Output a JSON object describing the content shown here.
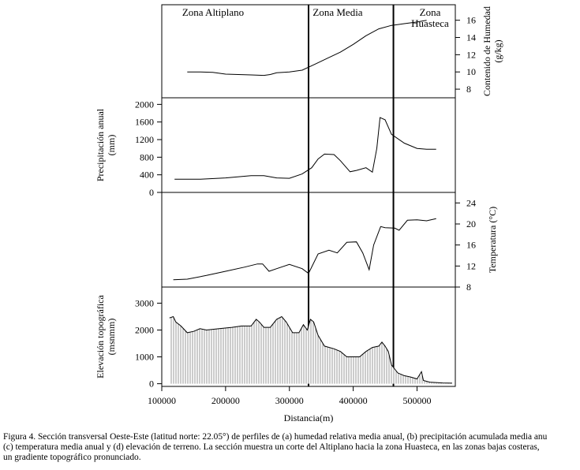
{
  "chart_data": {
    "type": "line",
    "title": "",
    "xlabel": "Distancia(m)",
    "xlim": [
      100000,
      560000
    ],
    "x_ticks": [
      100000,
      200000,
      300000,
      400000,
      500000
    ],
    "x_tick_labels": [
      "100000",
      "200000",
      "300000",
      "400000",
      "500000"
    ],
    "zones": [
      {
        "name": "Zona Altiplano",
        "x_start": 100000,
        "x_end": 330000
      },
      {
        "name": "Zona Media",
        "x_start": 330000,
        "x_end": 463000
      },
      {
        "name": "Zona Huasteca",
        "x_start": 463000,
        "x_end": 560000
      }
    ],
    "boundaries": [
      330000,
      463000
    ],
    "panels": [
      {
        "id": "humidity",
        "type": "line",
        "ylabel": "Contenido de Humedad (g/kg)",
        "ylabel_lines": [
          "Contenido de Humedad",
          "(g/kg)"
        ],
        "axis_side": "right",
        "ylim": [
          7,
          17.8
        ],
        "y_ticks": [
          8,
          10,
          12,
          14,
          16
        ],
        "series": [
          {
            "name": "Humedad",
            "x": [
              140000,
              160000,
              180000,
              200000,
              220000,
              240000,
              260000,
              270000,
              280000,
              300000,
              320000,
              340000,
              360000,
              380000,
              400000,
              420000,
              440000,
              460000,
              480000,
              500000,
              515000
            ],
            "y": [
              10.0,
              10.0,
              9.95,
              9.75,
              9.7,
              9.65,
              9.6,
              9.7,
              9.9,
              10.0,
              10.2,
              10.9,
              11.6,
              12.3,
              13.2,
              14.2,
              15.0,
              15.4,
              15.6,
              15.8,
              16.0
            ]
          }
        ]
      },
      {
        "id": "precipitation",
        "type": "line",
        "ylabel": "Precipitación anual (mm)",
        "ylabel_lines": [
          "Precipitación anual",
          "(mm)"
        ],
        "axis_side": "left",
        "ylim": [
          0,
          2150
        ],
        "y_ticks": [
          0,
          400,
          800,
          1200,
          1600,
          2000
        ],
        "series": [
          {
            "name": "Precipitación",
            "x": [
              120000,
              160000,
              200000,
              240000,
              260000,
              280000,
              300000,
              320000,
              335000,
              345000,
              355000,
              370000,
              380000,
              395000,
              405000,
              420000,
              430000,
              437000,
              442000,
              450000,
              460000,
              480000,
              500000,
              515000,
              530000
            ],
            "y": [
              300,
              300,
              330,
              380,
              380,
              330,
              320,
              420,
              560,
              760,
              870,
              860,
              720,
              470,
              500,
              560,
              460,
              1000,
              1700,
              1650,
              1320,
              1120,
              1000,
              980,
              980
            ]
          }
        ]
      },
      {
        "id": "temperature",
        "type": "line",
        "ylabel": "Temperatura (°C)",
        "ylabel_lines": [
          "Temperatura  (°C)"
        ],
        "axis_side": "right",
        "ylim": [
          8,
          26
        ],
        "y_ticks": [
          8,
          12,
          16,
          20,
          24
        ],
        "series": [
          {
            "name": "Temperatura",
            "x": [
              118000,
              140000,
              170000,
              200000,
              230000,
              250000,
              258000,
              268000,
              280000,
              300000,
              320000,
              330000,
              345000,
              362000,
              375000,
              390000,
              405000,
              415000,
              425000,
              432000,
              443000,
              450000,
              465000,
              472000,
              485000,
              500000,
              515000,
              530000
            ],
            "y": [
              9.4,
              9.5,
              10.2,
              11.0,
              11.8,
              12.4,
              12.4,
              11.0,
              11.5,
              12.3,
              11.5,
              10.6,
              14.3,
              15.0,
              14.5,
              16.5,
              16.6,
              14.5,
              11.3,
              16.0,
              19.5,
              19.3,
              19.2,
              18.8,
              20.7,
              20.8,
              20.6,
              21.0
            ]
          }
        ]
      },
      {
        "id": "elevation",
        "type": "area",
        "ylabel": "Elevación topográfica (msnmm)",
        "ylabel_lines": [
          "Elevación topográfica",
          "(msnmm)"
        ],
        "axis_side": "left",
        "ylim": [
          -100,
          3600
        ],
        "y_ticks": [
          0,
          1000,
          2000,
          3000
        ],
        "series": [
          {
            "name": "Elevación",
            "x": [
              112000,
              118000,
              122000,
              130000,
              140000,
              150000,
              160000,
              170000,
              190000,
              210000,
              225000,
              240000,
              248000,
              253000,
              260000,
              270000,
              280000,
              288000,
              295000,
              305000,
              315000,
              322000,
              328000,
              333000,
              338000,
              345000,
              355000,
              370000,
              380000,
              390000,
              410000,
              420000,
              430000,
              440000,
              445000,
              450000,
              455000,
              460000,
              470000,
              480000,
              490000,
              500000,
              507000,
              510000,
              520000,
              540000,
              555000
            ],
            "y": [
              2450,
              2500,
              2300,
              2150,
              1900,
              1950,
              2050,
              2000,
              2050,
              2100,
              2150,
              2150,
              2400,
              2300,
              2100,
              2100,
              2400,
              2500,
              2300,
              1900,
              1900,
              2200,
              2000,
              2400,
              2300,
              1800,
              1400,
              1300,
              1200,
              1000,
              1000,
              1200,
              1350,
              1400,
              1550,
              1400,
              1200,
              700,
              400,
              300,
              250,
              180,
              450,
              120,
              60,
              30,
              20
            ]
          }
        ]
      }
    ]
  },
  "caption_lines": [
    "Figura 4. Sección transversal Oeste-Este (latitud norte: 22.05°) de perfiles de (a) humedad relativa media anual, (b) precipitación acumulada media anu",
    "(c) temperatura media anual y (d) elevación de terreno. La sección muestra un corte del Altiplano hacia la zona Huasteca, en las zonas bajas costeras,",
    "un gradiente topográfico pronunciado."
  ]
}
